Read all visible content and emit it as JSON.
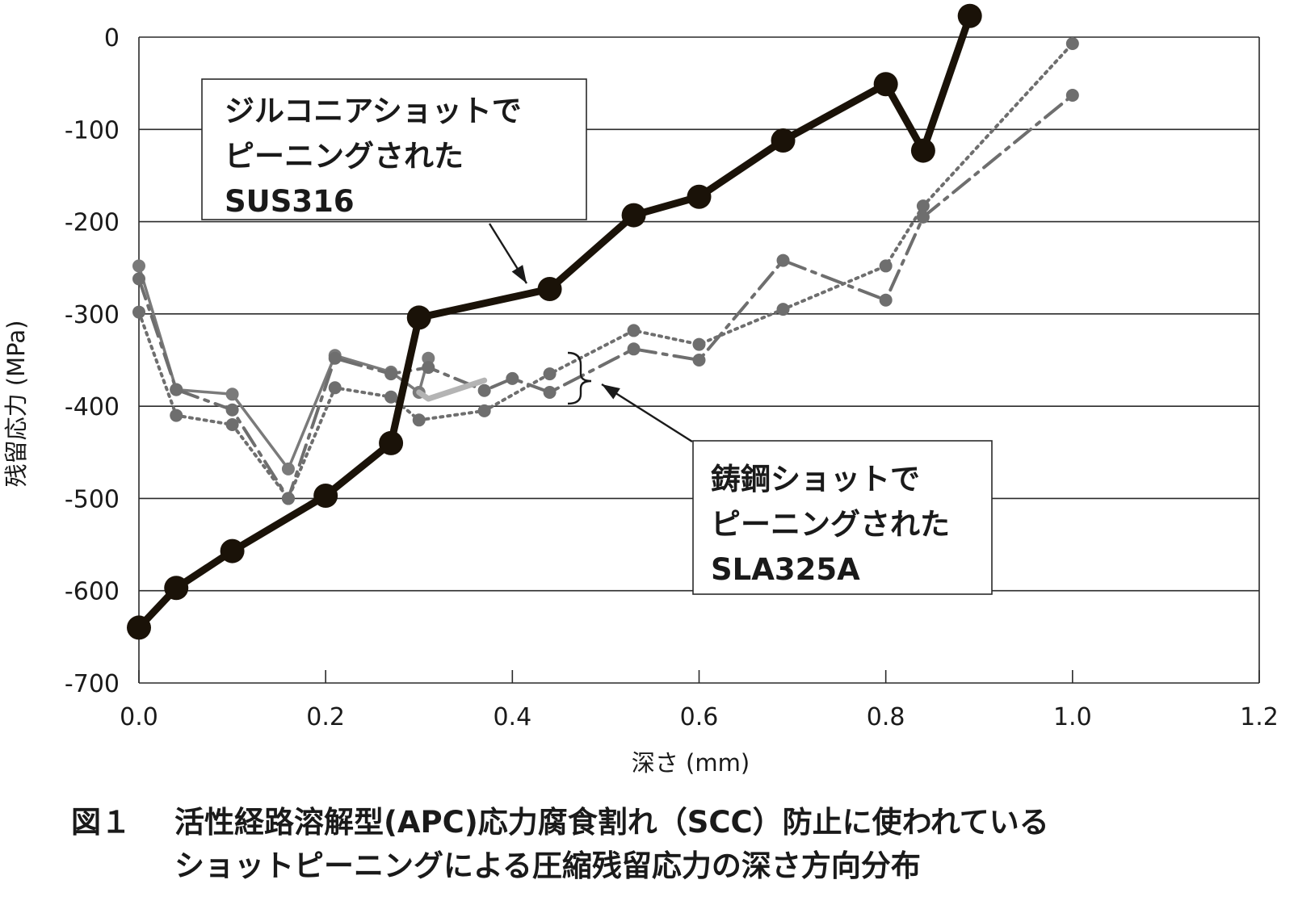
{
  "chart_data": {
    "type": "line",
    "xlabel": "深さ (mm)",
    "ylabel": "残留応力 (MPa)",
    "xlim": [
      0.0,
      1.2
    ],
    "ylim": [
      -700,
      0
    ],
    "x_ticks": [
      "0.0",
      "0.2",
      "0.4",
      "0.6",
      "0.8",
      "1.0",
      "1.2"
    ],
    "y_ticks": [
      "0",
      "-100",
      "-200",
      "-300",
      "-400",
      "-500",
      "-600",
      "-700"
    ],
    "grid": "horizontal",
    "series": [
      {
        "style": "solid-thin-gray",
        "color": "#7a7a7a",
        "x": [
          0.0,
          0.04,
          0.1,
          0.16,
          0.21,
          0.27,
          0.3,
          0.31
        ],
        "y": [
          -248,
          -382,
          -387,
          -468,
          -345,
          -363,
          -385,
          -348
        ]
      },
      {
        "style": "dashdot-gray",
        "color": "#6e6e6e",
        "x": [
          0.0,
          0.04,
          0.1,
          0.16,
          0.21,
          0.27,
          0.31,
          0.37,
          0.4,
          0.44,
          0.53,
          0.6,
          0.69,
          0.8,
          0.84,
          1.0
        ],
        "y": [
          -262,
          -382,
          -404,
          -500,
          -348,
          -365,
          -358,
          -383,
          -370,
          -385,
          -338,
          -350,
          -242,
          -285,
          -195,
          -63
        ]
      },
      {
        "style": "dotted-gray",
        "color": "#6e6e6e",
        "x": [
          0.0,
          0.04,
          0.1,
          0.16,
          0.21,
          0.27,
          0.3,
          0.37,
          0.44,
          0.53,
          0.6,
          0.69,
          0.8,
          0.84,
          1.0
        ],
        "y": [
          -298,
          -410,
          -420,
          -500,
          -380,
          -390,
          -415,
          -405,
          -365,
          -318,
          -333,
          -295,
          -248,
          -183,
          -7
        ]
      },
      {
        "style": "solid-light-gray",
        "color": "#b4b4b4",
        "x": [
          0.3,
          0.31,
          0.37
        ],
        "y": [
          -385,
          -392,
          -372
        ]
      },
      {
        "style": "solid-thick-black",
        "color": "#1a1208",
        "x": [
          0.0,
          0.04,
          0.1,
          0.2,
          0.27,
          0.3,
          0.44,
          0.53,
          0.6,
          0.69,
          0.8,
          0.84,
          0.89
        ],
        "y": [
          -640,
          -597,
          -557,
          -497,
          -440,
          -304,
          -273,
          -193,
          -173,
          -112,
          -51,
          -123,
          23
        ]
      }
    ],
    "annotations": [
      {
        "lines": [
          "ジルコニアショットで",
          "ピーニングされた",
          "SUS316"
        ]
      },
      {
        "lines": [
          "鋳鋼ショットで",
          "ピーニングされた",
          "SLA325A"
        ]
      }
    ]
  },
  "caption": {
    "label": "図１",
    "line1": "活性経路溶解型(APC)応力腐食割れ（SCC）防止に使われている",
    "line2": "ショットピーニングによる圧縮残留応力の深さ方向分布"
  }
}
